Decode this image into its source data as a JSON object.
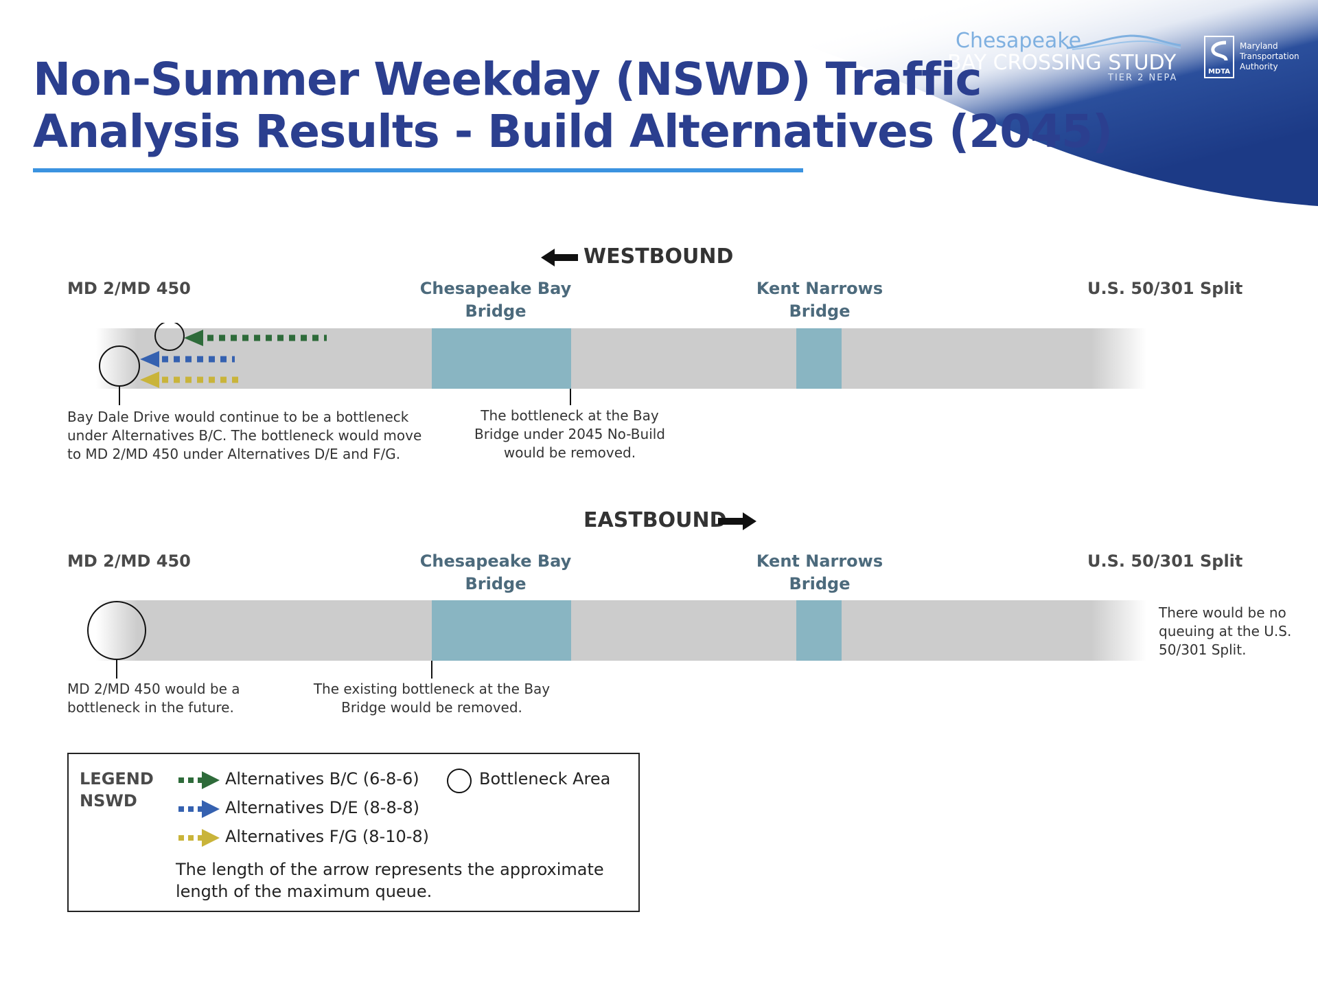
{
  "header": {
    "title_line1": "Non-Summer Weekday (NSWD) Traffic",
    "title_line2": "Analysis Results - Build Alternatives (2045)",
    "logo": {
      "line1": "Chesapeake",
      "line2": "BAY CROSSING STUDY",
      "line3": "TIER 2 NEPA",
      "agency_badge": "MDTA",
      "agency_line1": "Maryland",
      "agency_line2": "Transportation",
      "agency_line3": "Authority"
    }
  },
  "westbound": {
    "direction_label": "WESTBOUND",
    "locations": {
      "west": "MD 2/MD 450",
      "bay_bridge_line1": "Chesapeake Bay",
      "bay_bridge_line2": "Bridge",
      "kent_line1": "Kent Narrows",
      "kent_line2": "Bridge",
      "east": "U.S. 50/301 Split"
    },
    "note_left": [
      "Bay Dale Drive would continue to be a bottleneck",
      "under Alternatives B/C. The bottleneck would move",
      "to MD 2/MD 450 under Alternatives D/E and F/G."
    ],
    "note_bridge": [
      "The bottleneck at the Bay",
      "Bridge under 2045 No-Build",
      "would be removed."
    ]
  },
  "eastbound": {
    "direction_label": "EASTBOUND",
    "locations": {
      "west": "MD 2/MD 450",
      "bay_bridge_line1": "Chesapeake Bay",
      "bay_bridge_line2": "Bridge",
      "kent_line1": "Kent Narrows",
      "kent_line2": "Bridge",
      "east": "U.S. 50/301 Split"
    },
    "note_left": [
      "MD 2/MD 450 would be a",
      "bottleneck in the future."
    ],
    "note_bridge": [
      "The existing bottleneck at the Bay",
      "Bridge would be removed."
    ],
    "note_right": [
      "There would be no",
      "queuing at the U.S.",
      "50/301 Split."
    ]
  },
  "legend": {
    "heading_line1": "LEGEND",
    "heading_line2": "NSWD",
    "items": [
      {
        "label": "Alternatives B/C (6-8-6)",
        "color": "#2e6b3a"
      },
      {
        "label": "Alternatives D/E (8-8-8)",
        "color": "#3561b0"
      },
      {
        "label": "Alternatives F/G (8-10-8)",
        "color": "#c9b43a"
      }
    ],
    "bottleneck_label": "Bottleneck Area",
    "note_line1": "The length of the arrow represents the approximate",
    "note_line2": "length of the maximum queue."
  },
  "colors": {
    "title": "#2b3f8f",
    "rule": "#3b93e0",
    "road": "#cccccc",
    "bridge": "#89b5c2",
    "bc": "#2e6b3a",
    "de": "#3561b0",
    "fg": "#c9b43a"
  }
}
